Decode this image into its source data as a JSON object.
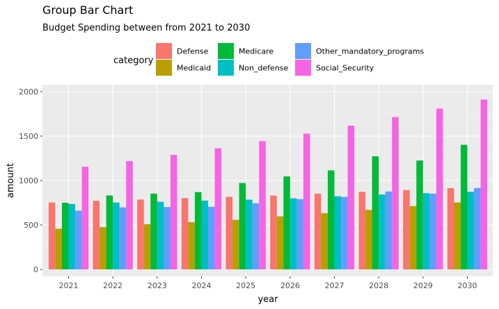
{
  "chart_data": {
    "type": "bar",
    "title": "Group Bar Chart",
    "subtitle": "Budget Spending between from 2021 to 2030",
    "xlabel": "year",
    "ylabel": "amount",
    "ylim": [
      0,
      2000
    ],
    "yticks": [
      0,
      500,
      1000,
      1500,
      2000
    ],
    "grid": true,
    "legend": {
      "title": "category",
      "placement": "top"
    },
    "categories": [
      "2021",
      "2022",
      "2023",
      "2024",
      "2025",
      "2026",
      "2027",
      "2028",
      "2029",
      "2030"
    ],
    "series": [
      {
        "name": "Defense",
        "color": "#F8766D",
        "values": [
          753,
          772,
          786,
          802,
          816,
          831,
          853,
          873,
          893,
          914
        ]
      },
      {
        "name": "Medicaid",
        "color": "#B79F00",
        "values": [
          458,
          476,
          509,
          531,
          558,
          597,
          632,
          669,
          712,
          753
        ]
      },
      {
        "name": "Medicare",
        "color": "#00BA38",
        "values": [
          750,
          832,
          853,
          870,
          972,
          1046,
          1114,
          1273,
          1225,
          1402
        ]
      },
      {
        "name": "Non_defense",
        "color": "#00BFC4",
        "values": [
          737,
          753,
          761,
          775,
          785,
          800,
          823,
          843,
          858,
          873
        ]
      },
      {
        "name": "Other_mandatory_programs",
        "color": "#619CFF",
        "values": [
          661,
          698,
          702,
          704,
          745,
          791,
          816,
          877,
          852,
          916
        ]
      },
      {
        "name": "Social_Security",
        "color": "#F564E3",
        "values": [
          1155,
          1219,
          1288,
          1362,
          1443,
          1528,
          1617,
          1714,
          1810,
          1911
        ]
      }
    ]
  }
}
